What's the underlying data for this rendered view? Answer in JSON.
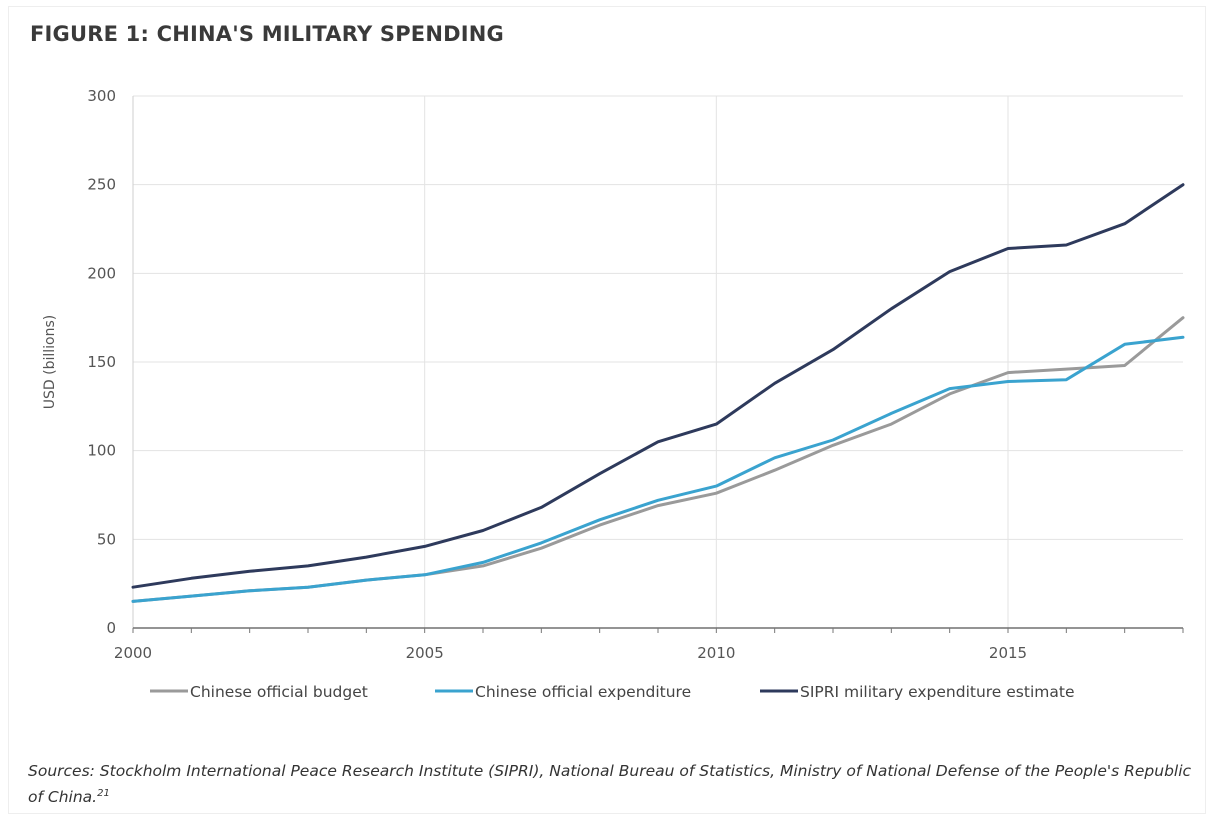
{
  "figure": {
    "title": "FIGURE 1: CHINA'S MILITARY SPENDING",
    "source_text": "Sources: Stockholm International Peace Research Institute (SIPRI), National Bureau of Statistics, Ministry of National Defense of the People's Republic of China.",
    "source_footnote": "21"
  },
  "chart_data": {
    "type": "line",
    "title": "",
    "xlabel": "",
    "ylabel": "USD (billions)",
    "xlim": [
      2000,
      2018
    ],
    "ylim": [
      0,
      300
    ],
    "x_ticks": [
      2000,
      2005,
      2010,
      2015
    ],
    "y_ticks": [
      0,
      50,
      100,
      150,
      200,
      250,
      300
    ],
    "grid": true,
    "legend_position": "bottom",
    "x": [
      2000,
      2001,
      2002,
      2003,
      2004,
      2005,
      2006,
      2007,
      2008,
      2009,
      2010,
      2011,
      2012,
      2013,
      2014,
      2015,
      2016,
      2017,
      2018
    ],
    "series": [
      {
        "name": "Chinese official budget",
        "color": "#9a9a9a",
        "values": [
          15,
          18,
          21,
          23,
          27,
          30,
          35,
          45,
          58,
          69,
          76,
          89,
          103,
          115,
          132,
          144,
          146,
          148,
          175
        ]
      },
      {
        "name": "Chinese official expenditure",
        "color": "#3aa3cf",
        "values": [
          15,
          18,
          21,
          23,
          27,
          30,
          37,
          48,
          61,
          72,
          80,
          96,
          106,
          121,
          135,
          139,
          140,
          160,
          164
        ]
      },
      {
        "name": "SIPRI military expenditure estimate",
        "color": "#2e3a5c",
        "values": [
          23,
          28,
          32,
          35,
          40,
          46,
          55,
          68,
          87,
          105,
          115,
          138,
          157,
          180,
          201,
          214,
          216,
          228,
          250
        ]
      }
    ]
  }
}
